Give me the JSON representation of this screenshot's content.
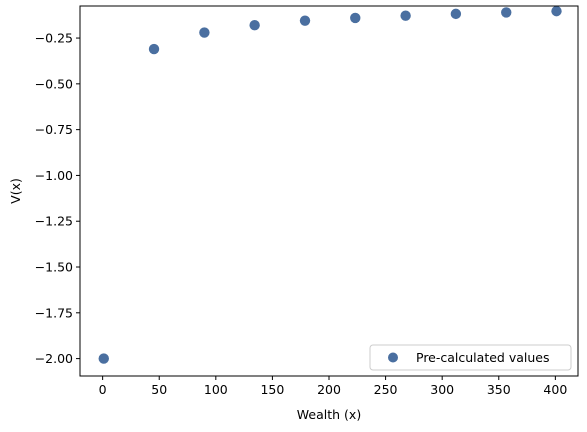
{
  "chart_data": {
    "type": "scatter",
    "xlabel": "Wealth (x)",
    "ylabel": "V(x)",
    "xlim": [
      -20,
      420
    ],
    "ylim": [
      -2.095,
      -0.075
    ],
    "xticks": [
      0,
      50,
      100,
      150,
      200,
      250,
      300,
      350,
      400
    ],
    "xtick_labels": [
      "0",
      "50",
      "100",
      "150",
      "200",
      "250",
      "300",
      "350",
      "400"
    ],
    "yticks": [
      -2.0,
      -1.75,
      -1.5,
      -1.25,
      -1.0,
      -0.75,
      -0.5,
      -0.25
    ],
    "ytick_labels": [
      "−2.00",
      "−1.75",
      "−1.50",
      "−1.25",
      "−1.00",
      "−0.75",
      "−0.50",
      "−0.25"
    ],
    "grid": false,
    "legend_position": "lower-right",
    "series": [
      {
        "name": "Pre-calculated values",
        "color": "#4a6fa0",
        "x": [
          1,
          45.4,
          89.9,
          134.3,
          178.8,
          223.2,
          267.7,
          312.1,
          356.6,
          401
        ],
        "y": [
          -2.0,
          -0.31,
          -0.22,
          -0.18,
          -0.155,
          -0.14,
          -0.128,
          -0.118,
          -0.11,
          -0.103
        ]
      }
    ]
  }
}
